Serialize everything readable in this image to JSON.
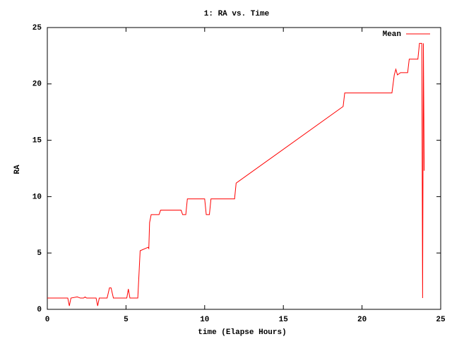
{
  "chart_data": {
    "type": "line",
    "title": "1: RA vs. Time",
    "x_label": "time (Elapse Hours)",
    "y_label": "RA",
    "xlim": [
      0,
      25
    ],
    "xticks": [
      0,
      5,
      10,
      15,
      20,
      25
    ],
    "ylim": [
      0,
      25
    ],
    "yticks": [
      0,
      5,
      10,
      15,
      20,
      25
    ],
    "grid": false,
    "legend": "top-right",
    "x": [
      0,
      1.3,
      1.4,
      1.5,
      1.9,
      2.1,
      2.3,
      2.4,
      2.5,
      3.1,
      3.2,
      3.3,
      3.8,
      3.95,
      4.05,
      4.2,
      4.7,
      5.05,
      5.15,
      5.25,
      5.75,
      5.9,
      6.4,
      6.45,
      6.5,
      6.6,
      7.1,
      7.2,
      8.5,
      8.6,
      8.8,
      8.9,
      10.0,
      10.1,
      10.3,
      10.4,
      11.9,
      12.0,
      12.2,
      18.8,
      18.9,
      21.9,
      22.05,
      22.15,
      22.25,
      22.45,
      22.9,
      23.0,
      23.55,
      23.65,
      23.8,
      23.85,
      23.9,
      23.95
    ],
    "series": [
      {
        "name": "Mean",
        "color": "#ff0000",
        "values": [
          1.0,
          1.0,
          0.3,
          1.0,
          1.1,
          1.0,
          1.0,
          1.1,
          1.0,
          1.0,
          0.3,
          1.0,
          1.0,
          1.9,
          1.9,
          1.0,
          1.0,
          1.0,
          1.8,
          1.0,
          1.0,
          5.2,
          5.5,
          5.4,
          7.7,
          8.4,
          8.4,
          8.8,
          8.8,
          8.4,
          8.4,
          9.8,
          9.8,
          8.4,
          8.4,
          9.8,
          9.8,
          11.2,
          11.4,
          18.0,
          19.2,
          19.2,
          20.8,
          21.3,
          20.8,
          21.0,
          21.0,
          22.2,
          22.2,
          23.6,
          23.6,
          1.0,
          23.6,
          12.3
        ]
      }
    ]
  }
}
